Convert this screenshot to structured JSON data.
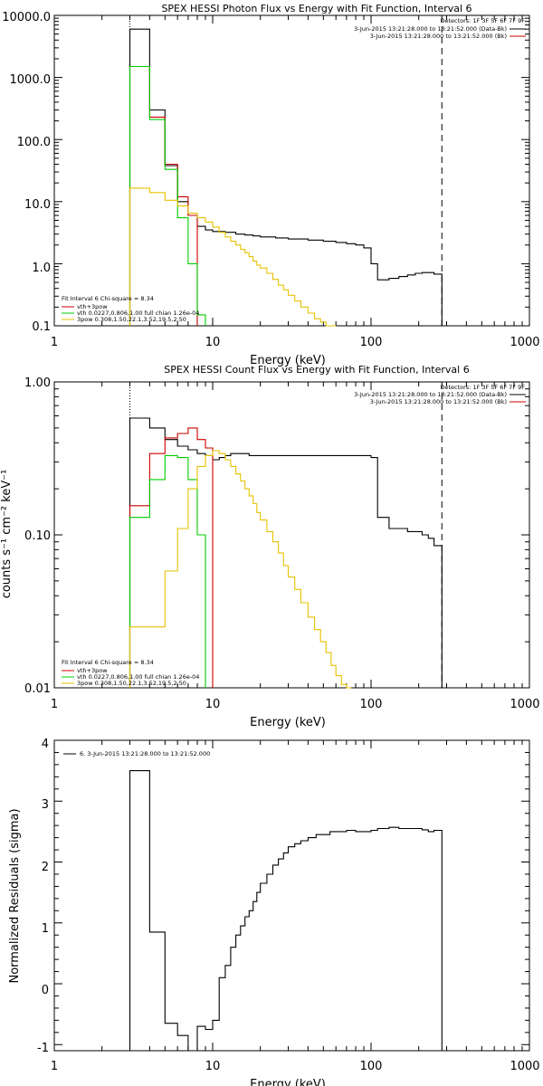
{
  "chart_data": [
    {
      "type": "line",
      "title": "SPEX HESSI Photon Flux vs Energy with Fit Function, Interval 6",
      "xlabel": "Energy (keV)",
      "ylabel": "",
      "xscale": "log",
      "yscale": "log",
      "xlim": [
        1,
        1000
      ],
      "ylim": [
        0.1,
        10000
      ],
      "x_tick_labels": [
        "1",
        "10",
        "100",
        "1000"
      ],
      "y_tick_labels": [
        "0.1",
        "1.0",
        "10.0",
        "100.0",
        "1000.0",
        "10000.0"
      ],
      "grid": false,
      "detectors_label": "Detectors: 1F 3F 5F 6F 7F 9F",
      "data_legend": [
        {
          "label": "3-Jun-2015 13:21:28.000 to 13:21:52.000 (Data-Bk)",
          "color": "#000000"
        },
        {
          "label": "3-Jun-2015 13:21:28.000 to 13:21:52.000 (Bk)",
          "color": "#cc0000"
        }
      ],
      "fit_legend": {
        "header": "Fit Interval 6   Chi-square = 8.34",
        "entries": [
          {
            "label": "vth+3pow",
            "color": "#cc0000"
          },
          {
            "label": "vth 0.0227,0.806,1.00  full chian 1.26e-04",
            "color": "#00cc00"
          },
          {
            "label": "3pow 0.308,1.50,22.1,3.52,19.5,2.50",
            "color": "#e6c200"
          }
        ]
      },
      "vlines": [
        {
          "x": 3,
          "style": "dotted",
          "color": "#000000"
        },
        {
          "x": 280,
          "style": "dashed",
          "color": "#000000"
        }
      ],
      "series": [
        {
          "name": "Data-Bk",
          "color": "#000000",
          "x": [
            3,
            4,
            5,
            6,
            7,
            8,
            9,
            10,
            12,
            14,
            16,
            18,
            20,
            25,
            30,
            40,
            50,
            60,
            70,
            80,
            90,
            100,
            110,
            130,
            150,
            170,
            190,
            210,
            230,
            250,
            280
          ],
          "y": [
            6000,
            300,
            38,
            10,
            6,
            4,
            3.5,
            3.3,
            3.2,
            3.0,
            2.9,
            2.8,
            2.7,
            2.6,
            2.5,
            2.4,
            2.3,
            2.2,
            2.1,
            2.0,
            1.8,
            1.0,
            0.55,
            0.58,
            0.62,
            0.66,
            0.7,
            0.72,
            0.72,
            0.68,
            0.65
          ]
        },
        {
          "name": "vth+3pow",
          "color": "#cc0000",
          "x": [
            3,
            4,
            5,
            6,
            7,
            8
          ],
          "y": [
            1500,
            230,
            40,
            12,
            6,
            4.5
          ]
        },
        {
          "name": "vth",
          "color": "#00cc00",
          "x": [
            3,
            4,
            5,
            6,
            7,
            8,
            9
          ],
          "y": [
            1500,
            210,
            33,
            5.5,
            1.0,
            0.15,
            0.1
          ]
        },
        {
          "name": "3pow",
          "color": "#e6c200",
          "x": [
            3,
            4,
            5,
            6,
            7,
            8,
            9,
            10,
            11,
            12,
            13,
            14,
            15,
            16,
            17,
            18,
            19,
            20,
            22,
            24,
            26,
            28,
            30,
            33,
            36,
            40,
            44,
            48,
            52,
            56,
            60
          ],
          "y": [
            16.5,
            14,
            10.5,
            8.5,
            6.5,
            5.5,
            4.7,
            3.9,
            3.2,
            2.7,
            2.3,
            2.0,
            1.7,
            1.5,
            1.3,
            1.1,
            0.95,
            0.85,
            0.7,
            0.56,
            0.45,
            0.38,
            0.31,
            0.25,
            0.2,
            0.16,
            0.13,
            0.115,
            0.1,
            0.09,
            0.08
          ]
        }
      ]
    },
    {
      "type": "line",
      "title": "SPEX HESSI Count Flux vs Energy with Fit Function, Interval 6",
      "xlabel": "Energy (keV)",
      "ylabel": "counts s⁻¹ cm⁻² keV⁻¹",
      "xscale": "log",
      "yscale": "log",
      "xlim": [
        1,
        1000
      ],
      "ylim": [
        0.01,
        1.0
      ],
      "x_tick_labels": [
        "1",
        "10",
        "100",
        "1000"
      ],
      "y_tick_labels": [
        "0.01",
        "0.10",
        "1.00"
      ],
      "grid": false,
      "detectors_label": "Detectors: 1F 3F 5F 6F 7F 9F",
      "data_legend": [
        {
          "label": "3-Jun-2015 13:21:28.000 to 13:21:52.000 (Data-Bk)",
          "color": "#000000"
        },
        {
          "label": "3-Jun-2015 13:21:28.000 to 13:21:52.000 (Bk)",
          "color": "#cc0000"
        }
      ],
      "fit_legend": {
        "header": "Fit Interval 6   Chi-square = 8.34",
        "entries": [
          {
            "label": "vth+3pow",
            "color": "#cc0000"
          },
          {
            "label": "vth 0.0227,0.806,1.00  full chian 1.26e-04",
            "color": "#00cc00"
          },
          {
            "label": "3pow 0.308,1.50,22.1,3.52,19.5,2.50",
            "color": "#e6c200"
          }
        ]
      },
      "vlines": [
        {
          "x": 3,
          "style": "dotted",
          "color": "#000000"
        },
        {
          "x": 280,
          "style": "dashed",
          "color": "#000000"
        }
      ],
      "series": [
        {
          "name": "Data-Bk",
          "color": "#000000",
          "x": [
            3,
            4,
            5,
            6,
            7,
            8,
            9,
            10,
            11,
            12,
            13,
            14,
            15,
            16,
            17,
            18,
            19,
            20,
            25,
            30,
            40,
            50,
            60,
            70,
            80,
            90,
            100,
            110,
            130,
            150,
            170,
            190,
            210,
            230,
            250,
            280
          ],
          "y": [
            0.58,
            0.5,
            0.42,
            0.38,
            0.36,
            0.34,
            0.33,
            0.31,
            0.32,
            0.33,
            0.34,
            0.34,
            0.34,
            0.34,
            0.33,
            0.33,
            0.33,
            0.33,
            0.33,
            0.33,
            0.33,
            0.33,
            0.33,
            0.33,
            0.33,
            0.33,
            0.32,
            0.13,
            0.11,
            0.11,
            0.105,
            0.105,
            0.1,
            0.095,
            0.085,
            0.078
          ]
        },
        {
          "name": "vth+3pow",
          "color": "#cc0000",
          "x": [
            3,
            4,
            5,
            6,
            7,
            8,
            9,
            10
          ],
          "y": [
            0.155,
            0.34,
            0.43,
            0.46,
            0.5,
            0.42,
            0.37,
            0.34
          ]
        },
        {
          "name": "vth",
          "color": "#00cc00",
          "x": [
            3,
            4,
            5,
            6,
            7,
            8,
            9
          ],
          "y": [
            0.13,
            0.23,
            0.33,
            0.32,
            0.23,
            0.1,
            0.01
          ]
        },
        {
          "name": "3pow",
          "color": "#e6c200",
          "x": [
            3,
            4,
            5,
            6,
            7,
            8,
            9,
            10,
            11,
            12,
            13,
            14,
            15,
            16,
            17,
            18,
            19,
            20,
            22,
            24,
            26,
            28,
            30,
            33,
            36,
            40,
            44,
            48,
            52,
            56,
            60,
            65,
            70,
            75
          ],
          "y": [
            0.025,
            0.025,
            0.058,
            0.11,
            0.2,
            0.28,
            0.33,
            0.355,
            0.34,
            0.31,
            0.28,
            0.25,
            0.225,
            0.2,
            0.18,
            0.16,
            0.14,
            0.125,
            0.105,
            0.09,
            0.076,
            0.063,
            0.053,
            0.044,
            0.036,
            0.029,
            0.024,
            0.02,
            0.017,
            0.014,
            0.012,
            0.0105,
            0.0095,
            0.009
          ]
        }
      ]
    },
    {
      "type": "line",
      "title": "",
      "xlabel": "Energy (keV)",
      "ylabel": "Normalized Residuals (sigma)",
      "xscale": "log",
      "yscale": "linear",
      "xlim": [
        1,
        1000
      ],
      "ylim": [
        -1.1,
        4
      ],
      "x_tick_labels": [
        "1",
        "10",
        "100",
        "1000"
      ],
      "y_tick_labels": [
        "-1",
        "0",
        "1",
        "2",
        "3",
        "4"
      ],
      "grid": false,
      "legend": {
        "label": "6. 3-Jun-2015 13:21:28.000 to 13:21:52.000",
        "color": "#000000",
        "position": "top-left"
      },
      "series": [
        {
          "name": "6.",
          "color": "#000000",
          "x": [
            3,
            4,
            5,
            6,
            7,
            8,
            9,
            10,
            11,
            12,
            13,
            14,
            15,
            16,
            17,
            18,
            19,
            20,
            22,
            24,
            26,
            28,
            30,
            33,
            36,
            40,
            45,
            50,
            55,
            60,
            70,
            80,
            90,
            100,
            110,
            130,
            150,
            170,
            190,
            210,
            230,
            250,
            280
          ],
          "y": [
            3.5,
            0.85,
            -0.65,
            -0.85,
            -1.1,
            -0.7,
            -0.75,
            -0.6,
            0.1,
            0.3,
            0.6,
            0.8,
            0.95,
            1.1,
            1.2,
            1.35,
            1.5,
            1.65,
            1.8,
            1.95,
            2.05,
            2.15,
            2.25,
            2.3,
            2.35,
            2.4,
            2.45,
            2.45,
            2.5,
            2.5,
            2.52,
            2.5,
            2.5,
            2.52,
            2.55,
            2.57,
            2.55,
            2.55,
            2.55,
            2.53,
            2.5,
            2.52,
            2.52
          ]
        }
      ]
    }
  ]
}
